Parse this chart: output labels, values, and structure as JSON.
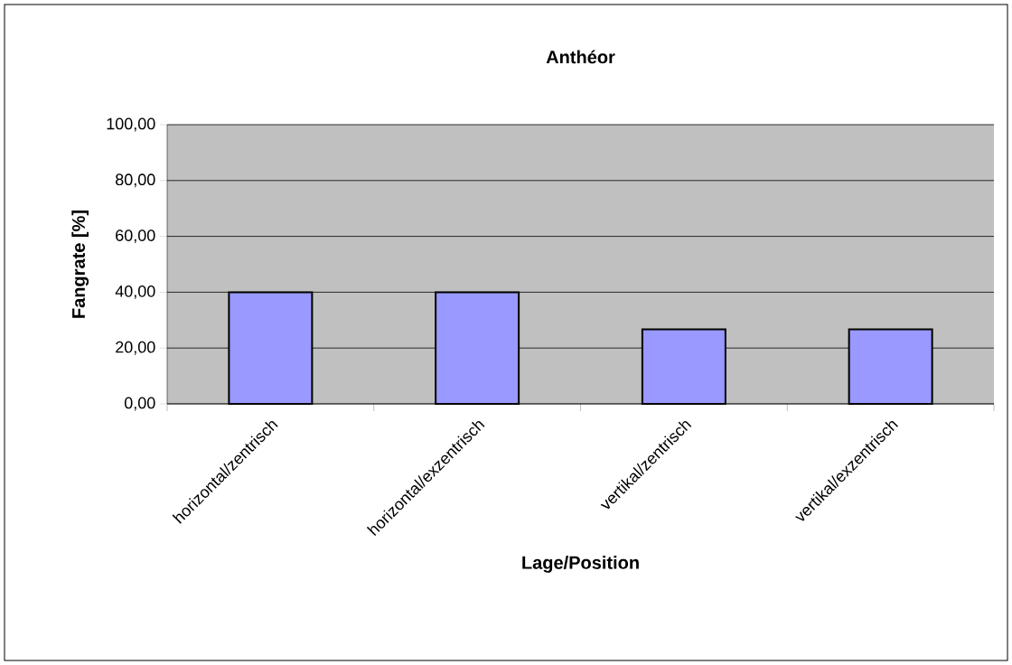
{
  "chart_data": {
    "type": "bar",
    "title": "Anthéor",
    "xlabel": "Lage/Position",
    "ylabel": "Fangrate [%]",
    "categories": [
      "horizontal/zentrisch",
      "horizontal/exzentrisch",
      "vertikal/zentrisch",
      "vertikal/exzentrisch"
    ],
    "values": [
      40,
      40,
      26.7,
      26.7
    ],
    "color": "#9999ff",
    "ylim": [
      0,
      100
    ],
    "yticks": [
      {
        "value": 0,
        "label": "0,00"
      },
      {
        "value": 20,
        "label": "20,00"
      },
      {
        "value": 40,
        "label": "40,00"
      },
      {
        "value": 60,
        "label": "60,00"
      },
      {
        "value": 80,
        "label": "80,00"
      },
      {
        "value": 100,
        "label": "100,00"
      }
    ],
    "grid": "y"
  }
}
